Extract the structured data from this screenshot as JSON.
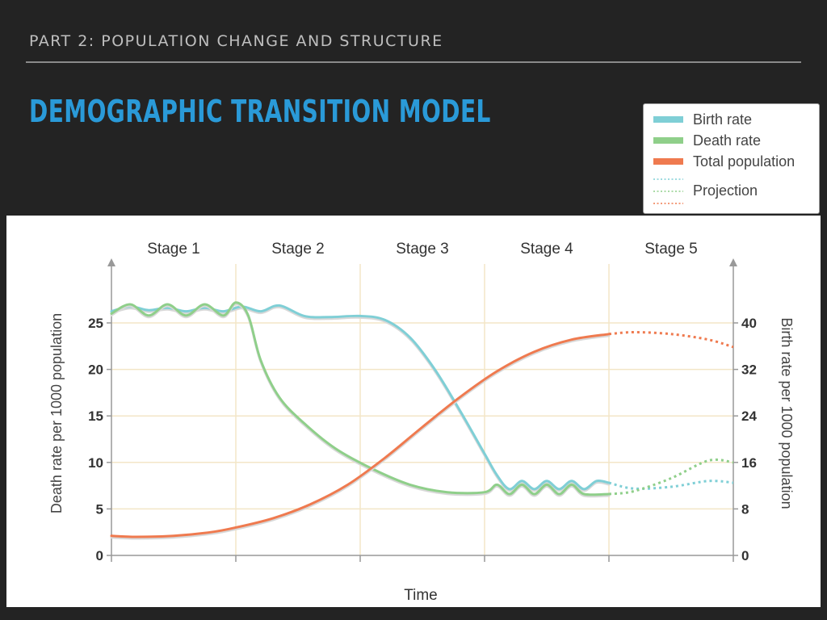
{
  "slide": {
    "kicker": "PART 2: POPULATION CHANGE AND STRUCTURE",
    "title": "DEMOGRAPHIC TRANSITION MODEL"
  },
  "legend": {
    "items": [
      {
        "label": "Birth rate",
        "color": "#7fcfd6"
      },
      {
        "label": "Death rate",
        "color": "#8fcf8a"
      },
      {
        "label": "Total population",
        "color": "#ef7a4f"
      }
    ],
    "projection_label": "Projection"
  },
  "chart_data": {
    "type": "line",
    "stages": [
      "Stage 1",
      "Stage 2",
      "Stage 3",
      "Stage 4",
      "Stage 5"
    ],
    "xlabel": "Time",
    "ylabel_left": "Death rate per 1000 population",
    "ylabel_right": "Birth rate per 1000 population",
    "yticks_left": [
      "0",
      "5",
      "10",
      "15",
      "20",
      "25"
    ],
    "yticks_right": [
      "0",
      "8",
      "16",
      "24",
      "32",
      "40"
    ],
    "ylim_left": [
      0,
      27
    ],
    "ylim_right": [
      0,
      43.2
    ],
    "x_range": [
      0,
      5
    ],
    "grid": true,
    "series": [
      {
        "name": "Birth rate",
        "color": "#7fcfd6",
        "axis": "right",
        "x": [
          0,
          0.15,
          0.3,
          0.45,
          0.6,
          0.75,
          0.9,
          1.05,
          1.2,
          1.35,
          1.55,
          1.75,
          2.0,
          2.2,
          2.4,
          2.6,
          2.8,
          3.0,
          3.1,
          3.2,
          3.3,
          3.4,
          3.5,
          3.6,
          3.7,
          3.8,
          3.9,
          4.0
        ],
        "values": [
          42,
          42.8,
          42.2,
          42.6,
          42.0,
          42.6,
          42.0,
          42.8,
          42.0,
          43.0,
          41.2,
          41.0,
          41.2,
          40.5,
          37.5,
          32.0,
          25.0,
          17.5,
          13.8,
          11.4,
          12.8,
          11.4,
          12.8,
          11.4,
          12.8,
          11.4,
          12.8,
          12.5
        ],
        "projection": {
          "x": [
            4.0,
            4.2,
            4.5,
            4.8,
            5.0
          ],
          "values": [
            12.5,
            11.5,
            11.8,
            12.8,
            12.5
          ]
        }
      },
      {
        "name": "Death rate",
        "color": "#8fcf8a",
        "axis": "left",
        "x": [
          0,
          0.15,
          0.3,
          0.45,
          0.6,
          0.75,
          0.9,
          1.0,
          1.1,
          1.2,
          1.35,
          1.55,
          1.8,
          2.1,
          2.4,
          2.7,
          3.0,
          3.1,
          3.2,
          3.3,
          3.4,
          3.5,
          3.6,
          3.7,
          3.8,
          4.0
        ],
        "values": [
          26,
          27.0,
          25.8,
          27.0,
          25.8,
          27.0,
          25.8,
          27.2,
          25.8,
          21.0,
          17.0,
          14.2,
          11.5,
          9.3,
          7.6,
          6.8,
          6.8,
          7.6,
          6.6,
          7.6,
          6.6,
          7.6,
          6.6,
          7.6,
          6.6,
          6.6
        ],
        "projection": {
          "x": [
            4.0,
            4.2,
            4.5,
            4.8,
            5.0
          ],
          "values": [
            6.6,
            6.9,
            8.3,
            10.2,
            10.0
          ]
        }
      },
      {
        "name": "Total population",
        "color": "#ef7a4f",
        "axis": "left",
        "x": [
          0,
          0.2,
          0.5,
          0.8,
          1.0,
          1.3,
          1.6,
          1.9,
          2.2,
          2.5,
          2.8,
          3.1,
          3.4,
          3.7,
          4.0
        ],
        "values": [
          2.1,
          2.0,
          2.1,
          2.5,
          3.0,
          4.0,
          5.5,
          7.6,
          10.5,
          13.8,
          17.0,
          19.8,
          21.9,
          23.2,
          23.8
        ],
        "projection": {
          "x": [
            4.0,
            4.2,
            4.5,
            4.8,
            5.0
          ],
          "values": [
            23.8,
            24.0,
            23.8,
            23.2,
            22.4
          ]
        }
      }
    ]
  }
}
